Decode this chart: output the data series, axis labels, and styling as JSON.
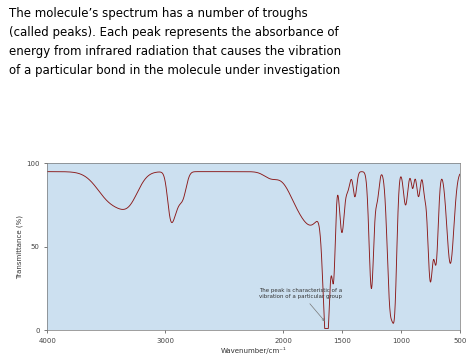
{
  "title_text": "The molecule’s spectrum has a number of troughs\n(called peaks). Each peak represents the absorbance of\nenergy from infrared radiation that causes the vibration\nof a particular bond in the molecule under investigation",
  "xlabel": "Wavenumber/cm⁻¹",
  "ylabel": "Transmittance (%)",
  "xlim_left": 4000,
  "xlim_right": 500,
  "ylim_bottom": 0,
  "ylim_top": 100,
  "yticks": [
    0,
    50,
    100
  ],
  "xticks": [
    4000,
    3000,
    2000,
    1500,
    1000,
    500
  ],
  "line_color": "#8B1A1A",
  "bg_color": "#cce0f0",
  "annotation_text": "The peak is characteristic of a\nvibration of a particular group",
  "title_fontsize": 8.5,
  "axis_fontsize": 5,
  "tick_fontsize": 5,
  "annot_fontsize": 4
}
